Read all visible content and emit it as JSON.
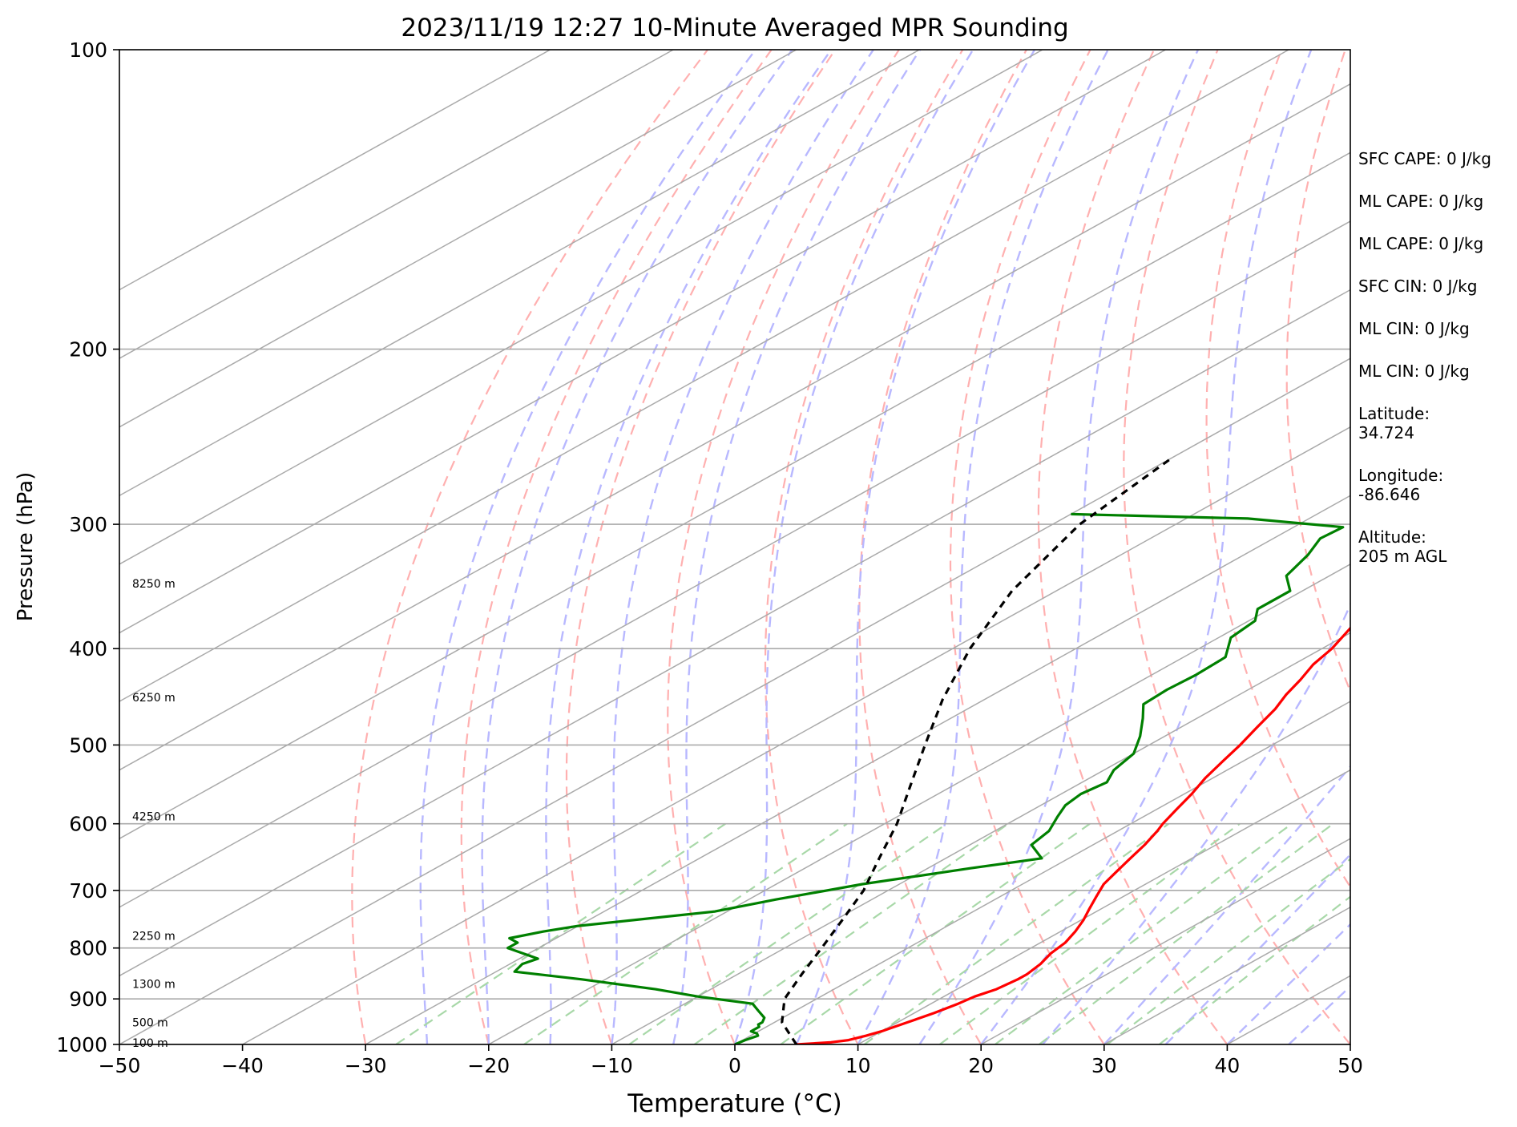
{
  "chart_data": {
    "type": "line",
    "title": "2023/11/19 12:27 10-Minute Averaged MPR Sounding",
    "xlabel": "Temperature (°C)",
    "ylabel": "Pressure (hPa)",
    "xlim": [
      -50,
      50
    ],
    "ylim": [
      1000,
      100
    ],
    "y_scale": "log",
    "x_ticks": [
      -50,
      -40,
      -30,
      -20,
      -10,
      0,
      10,
      20,
      30,
      40,
      50
    ],
    "x_tick_labels": [
      "−50",
      "−40",
      "−30",
      "−20",
      "−10",
      "0",
      "10",
      "20",
      "30",
      "40",
      "50"
    ],
    "y_ticks": [
      1000,
      900,
      800,
      700,
      600,
      500,
      400,
      300,
      200,
      100
    ],
    "grid": true,
    "series": [
      {
        "role": "temperature",
        "color": "#ff0000",
        "points": [
          [
            1000,
            5.0
          ],
          [
            995,
            7.5
          ],
          [
            990,
            8.6
          ],
          [
            980,
            9.4
          ],
          [
            970,
            10.0
          ],
          [
            960,
            10.4
          ],
          [
            950,
            10.8
          ],
          [
            930,
            11.6
          ],
          [
            910,
            12.2
          ],
          [
            895,
            12.5
          ],
          [
            880,
            13.2
          ],
          [
            860,
            13.5
          ],
          [
            850,
            13.5
          ],
          [
            830,
            13.1
          ],
          [
            810,
            12.4
          ],
          [
            790,
            12.0
          ],
          [
            770,
            11.2
          ],
          [
            750,
            10.2
          ],
          [
            730,
            9.0
          ],
          [
            710,
            7.8
          ],
          [
            690,
            6.6
          ],
          [
            670,
            5.8
          ],
          [
            650,
            5.0
          ],
          [
            630,
            4.2
          ],
          [
            610,
            3.2
          ],
          [
            600,
            2.6
          ],
          [
            580,
            1.6
          ],
          [
            560,
            0.6
          ],
          [
            540,
            -0.6
          ],
          [
            520,
            -1.6
          ],
          [
            500,
            -2.6
          ],
          [
            480,
            -3.8
          ],
          [
            460,
            -5.0
          ],
          [
            445,
            -6.2
          ],
          [
            430,
            -7.2
          ],
          [
            415,
            -8.4
          ],
          [
            400,
            -9.2
          ],
          [
            380,
            -10.8
          ],
          [
            360,
            -12.4
          ],
          [
            340,
            -14.2
          ],
          [
            320,
            -16.4
          ],
          [
            305,
            -18.2
          ],
          [
            290,
            -19.8
          ],
          [
            280,
            -21.0
          ],
          [
            270,
            -22.4
          ],
          [
            262,
            -23.2
          ],
          [
            255,
            -24.2
          ]
        ]
      },
      {
        "role": "dewpoint",
        "color": "#008000",
        "points": [
          [
            1000,
            0.0
          ],
          [
            990,
            0.2
          ],
          [
            980,
            0.6
          ],
          [
            975,
            0.2
          ],
          [
            970,
            -0.6
          ],
          [
            960,
            -0.6
          ],
          [
            955,
            -1.0
          ],
          [
            950,
            -1.0
          ],
          [
            940,
            -1.5
          ],
          [
            925,
            -3.0
          ],
          [
            910,
            -4.5
          ],
          [
            895,
            -10.0
          ],
          [
            880,
            -14.5
          ],
          [
            860,
            -22.0
          ],
          [
            845,
            -28.5
          ],
          [
            830,
            -29.0
          ],
          [
            820,
            -28.5
          ],
          [
            800,
            -32.5
          ],
          [
            790,
            -32.5
          ],
          [
            782,
            -33.8
          ],
          [
            770,
            -32.0
          ],
          [
            760,
            -30.0
          ],
          [
            735,
            -21.0
          ],
          [
            715,
            -17.8
          ],
          [
            690,
            -13.0
          ],
          [
            665,
            -6.5
          ],
          [
            650,
            -2.2
          ],
          [
            630,
            -5.0
          ],
          [
            610,
            -5.6
          ],
          [
            590,
            -7.0
          ],
          [
            575,
            -8.0
          ],
          [
            560,
            -8.4
          ],
          [
            545,
            -8.0
          ],
          [
            530,
            -9.2
          ],
          [
            510,
            -10.0
          ],
          [
            490,
            -12.0
          ],
          [
            470,
            -14.4
          ],
          [
            455,
            -16.4
          ],
          [
            440,
            -16.6
          ],
          [
            425,
            -16.4
          ],
          [
            408,
            -16.6
          ],
          [
            390,
            -19.0
          ],
          [
            375,
            -19.5
          ],
          [
            365,
            -21.0
          ],
          [
            350,
            -21.0
          ],
          [
            338,
            -23.5
          ],
          [
            322,
            -24.8
          ],
          [
            310,
            -26.2
          ],
          [
            302,
            -26.0
          ],
          [
            296,
            -35.0
          ],
          [
            293,
            -50.0
          ]
        ]
      },
      {
        "role": "parcel",
        "color": "#000000",
        "points": [
          [
            1000,
            5.0
          ],
          [
            950,
            0.6
          ],
          [
            900,
            -2.6
          ],
          [
            850,
            -4.8
          ],
          [
            800,
            -7.0
          ],
          [
            750,
            -9.4
          ],
          [
            700,
            -12.0
          ],
          [
            650,
            -15.4
          ],
          [
            600,
            -19.0
          ],
          [
            550,
            -23.4
          ],
          [
            500,
            -28.2
          ],
          [
            450,
            -33.4
          ],
          [
            400,
            -38.6
          ],
          [
            350,
            -43.6
          ],
          [
            300,
            -47.8
          ],
          [
            257,
            -50.0
          ]
        ]
      }
    ],
    "height_labels": [
      {
        "text": "100 m",
        "p": 996
      },
      {
        "text": "500 m",
        "p": 950
      },
      {
        "text": "1300 m",
        "p": 869
      },
      {
        "text": "2250 m",
        "p": 778
      },
      {
        "text": "4250 m",
        "p": 590
      },
      {
        "text": "6250 m",
        "p": 448
      },
      {
        "text": "8250 m",
        "p": 344
      }
    ]
  },
  "info": [
    {
      "key": "sfc-cape",
      "text": "SFC CAPE: 0 J/kg"
    },
    {
      "key": "ml-cape",
      "text": "ML CAPE: 0 J/kg"
    },
    {
      "key": "ml-cape-2",
      "text": "ML CAPE: 0 J/kg"
    },
    {
      "key": "sfc-cin",
      "text": "SFC CIN: 0 J/kg"
    },
    {
      "key": "ml-cin",
      "text": "ML CIN: 0 J/kg"
    },
    {
      "key": "ml-cin-2",
      "text": "ML CIN: 0 J/kg"
    },
    {
      "key": "latitude",
      "text": "Latitude:\n34.724"
    },
    {
      "key": "longitude",
      "text": "Longitude:\n-86.646"
    },
    {
      "key": "altitude",
      "text": "Altitude:\n205 m AGL"
    }
  ],
  "colors": {
    "isotherm": "#aaaaaa",
    "dry_adiabat": "#ffb0b0",
    "moist_adiabat": "#b8b8ff",
    "mixing_ratio": "#a8d8a8"
  }
}
